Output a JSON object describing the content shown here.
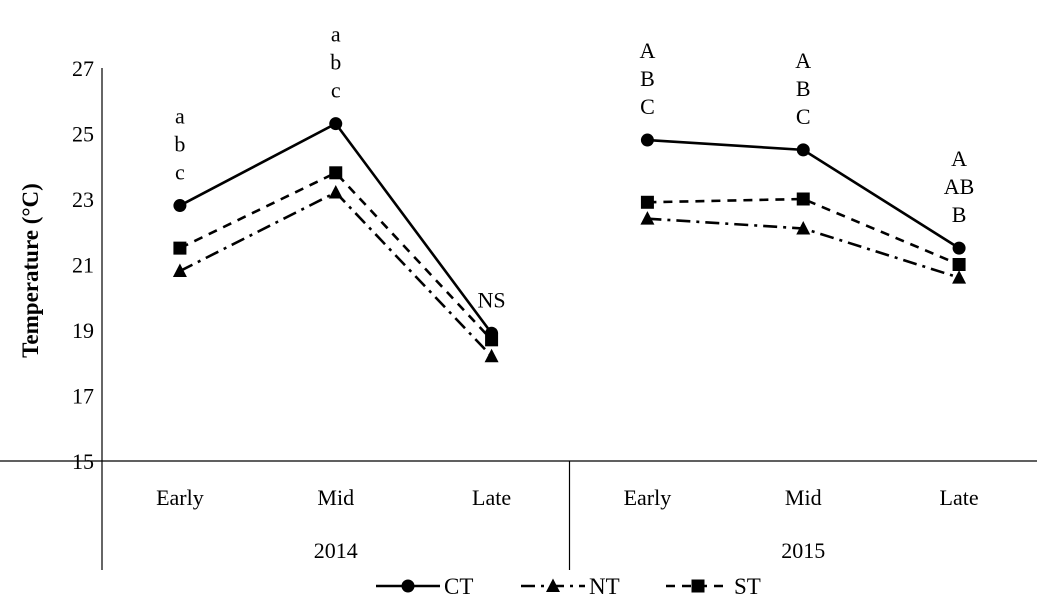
{
  "chart_data": {
    "type": "line",
    "ylabel": "Temperature (°C)",
    "ylim": [
      15,
      27
    ],
    "yticks": [
      "15",
      "17",
      "19",
      "21",
      "23",
      "25",
      "27"
    ],
    "grid": false,
    "legend_position": "bottom",
    "groups": [
      {
        "label": "2014",
        "categories": [
          "Early",
          "Mid",
          "Late"
        ]
      },
      {
        "label": "2015",
        "categories": [
          "Early",
          "Mid",
          "Late"
        ]
      }
    ],
    "series": [
      {
        "name": "CT",
        "marker": "circle",
        "dash": "solid",
        "groups": [
          [
            22.8,
            25.3,
            18.9
          ],
          [
            24.8,
            24.5,
            21.5
          ]
        ]
      },
      {
        "name": "NT",
        "marker": "triangle",
        "dash": "dash-dot",
        "groups": [
          [
            20.8,
            23.2,
            18.2
          ],
          [
            22.4,
            22.1,
            20.6
          ]
        ]
      },
      {
        "name": "ST",
        "marker": "square",
        "dash": "dash",
        "groups": [
          [
            21.5,
            23.8,
            18.7
          ],
          [
            22.9,
            23.0,
            21.0
          ]
        ]
      }
    ],
    "annotations": [
      {
        "group": 0,
        "category": 0,
        "lines": [
          "a",
          "b",
          "c"
        ]
      },
      {
        "group": 0,
        "category": 1,
        "lines": [
          "a",
          "b",
          "c"
        ]
      },
      {
        "group": 0,
        "category": 2,
        "lines": [
          "NS"
        ]
      },
      {
        "group": 1,
        "category": 0,
        "lines": [
          "A",
          "B",
          "C"
        ]
      },
      {
        "group": 1,
        "category": 1,
        "lines": [
          "A",
          "B",
          "C"
        ]
      },
      {
        "group": 1,
        "category": 2,
        "lines": [
          "A",
          "AB",
          "B"
        ]
      }
    ]
  }
}
